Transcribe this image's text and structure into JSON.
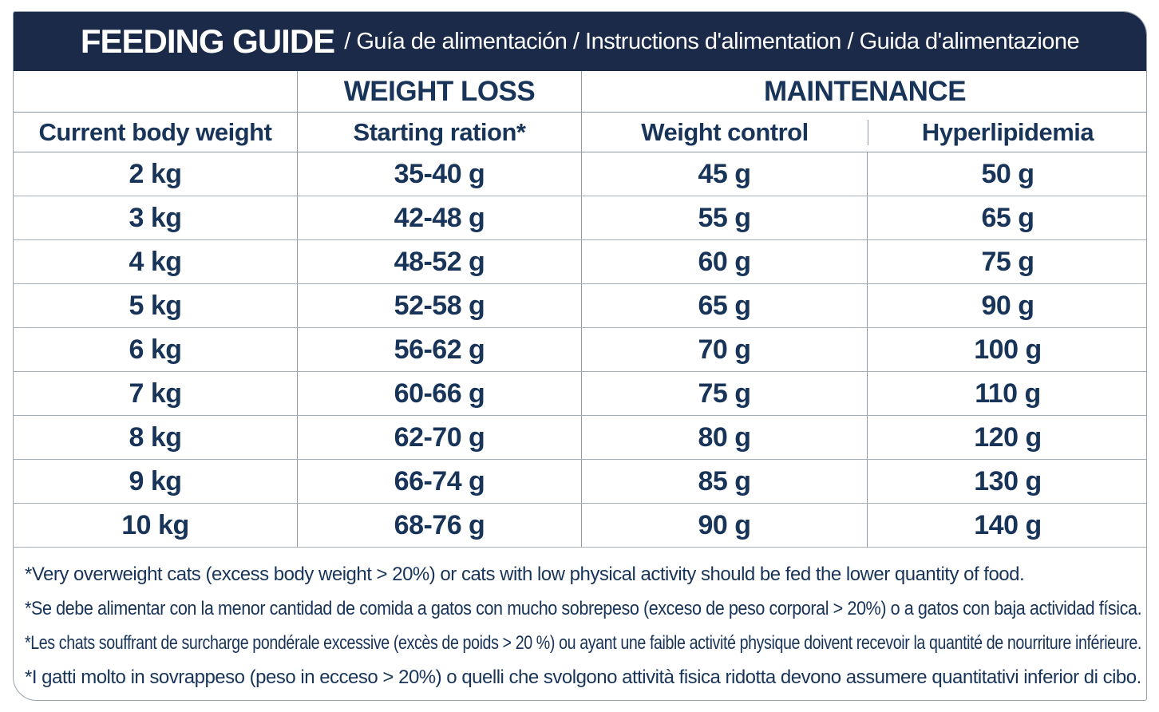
{
  "header": {
    "title": "FEEDING GUIDE",
    "subtitle": "/ Guía de alimentación / Instructions d'alimentation / Guida d'alimentazione"
  },
  "table": {
    "group_headers": {
      "blank": "",
      "weight_loss": "WEIGHT LOSS",
      "maintenance": "MAINTENANCE"
    },
    "columns": [
      "Current body weight",
      "Starting ration*",
      "Weight control",
      "Hyperlipidemia"
    ],
    "rows": [
      [
        "2 kg",
        "35-40 g",
        "45 g",
        "50 g"
      ],
      [
        "3 kg",
        "42-48 g",
        "55 g",
        "65 g"
      ],
      [
        "4 kg",
        "48-52 g",
        "60 g",
        "75 g"
      ],
      [
        "5 kg",
        "52-58 g",
        "65 g",
        "90 g"
      ],
      [
        "6 kg",
        "56-62 g",
        "70 g",
        "100 g"
      ],
      [
        "7 kg",
        "60-66 g",
        "75 g",
        "110 g"
      ],
      [
        "8 kg",
        "62-70 g",
        "80 g",
        "120 g"
      ],
      [
        "9 kg",
        "66-74 g",
        "85 g",
        "130 g"
      ],
      [
        "10 kg",
        "68-76 g",
        "90 g",
        "140 g"
      ]
    ]
  },
  "footnotes": [
    "*Very overweight cats (excess body weight > 20%) or cats with low physical activity should be fed the lower quantity of food.",
    "*Se debe alimentar con la menor cantidad de comida a gatos con mucho sobrepeso (exceso de peso corporal > 20%) o a gatos con baja actividad física.",
    "*Les chats souffrant de surcharge pondérale excessive (excès de poids > 20 %) ou ayant une faible activité physique doivent recevoir la quantité de nourriture inférieure.",
    "*I gatti molto in sovrappeso (peso in ecceso > 20%) o quelli che svolgono attività fisica ridotta devono assumere quantitativi inferior di cibo."
  ],
  "colors": {
    "navy_bar": "#1b2a49",
    "text_navy": "#183459",
    "grid_line": "#8e99a4",
    "row_line": "#a6aeb6",
    "card_border": "#97a2ab"
  }
}
